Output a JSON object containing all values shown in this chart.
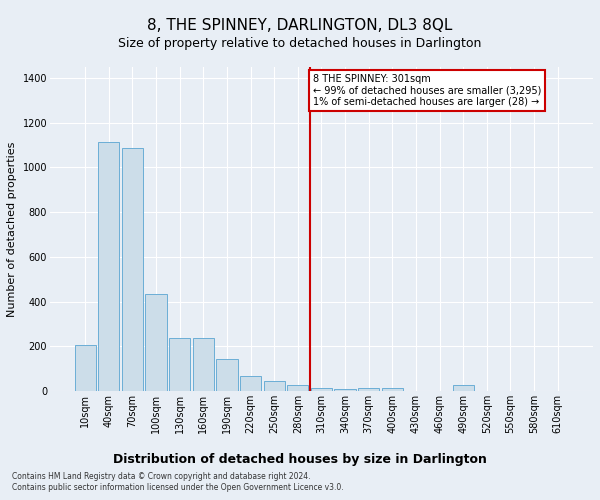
{
  "title": "8, THE SPINNEY, DARLINGTON, DL3 8QL",
  "subtitle": "Size of property relative to detached houses in Darlington",
  "xlabel": "Distribution of detached houses by size in Darlington",
  "ylabel": "Number of detached properties",
  "footer_line1": "Contains HM Land Registry data © Crown copyright and database right 2024.",
  "footer_line2": "Contains public sector information licensed under the Open Government Licence v3.0.",
  "bar_labels": [
    "10sqm",
    "40sqm",
    "70sqm",
    "100sqm",
    "130sqm",
    "160sqm",
    "190sqm",
    "220sqm",
    "250sqm",
    "280sqm",
    "310sqm",
    "340sqm",
    "370sqm",
    "400sqm",
    "430sqm",
    "460sqm",
    "490sqm",
    "520sqm",
    "550sqm",
    "580sqm",
    "610sqm"
  ],
  "bar_values": [
    205,
    1115,
    1085,
    435,
    235,
    235,
    145,
    65,
    45,
    25,
    15,
    10,
    15,
    15,
    0,
    0,
    25,
    0,
    0,
    0,
    0
  ],
  "bar_color": "#ccdde9",
  "bar_edgecolor": "#6baed6",
  "annotation_label": "8 THE SPINNEY: 301sqm",
  "annotation_line1": "← 99% of detached houses are smaller (3,295)",
  "annotation_line2": "1% of semi-detached houses are larger (28) →",
  "vline_color": "#cc0000",
  "annotation_box_edgecolor": "#cc0000",
  "ylim": [
    0,
    1450
  ],
  "background_color": "#e8eef5",
  "plot_background": "#e8eef5",
  "grid_color": "#ffffff",
  "title_fontsize": 11,
  "subtitle_fontsize": 9,
  "tick_fontsize": 7,
  "ylabel_fontsize": 8,
  "xlabel_fontsize": 9,
  "annotation_fontsize": 7,
  "footer_fontsize": 5.5
}
